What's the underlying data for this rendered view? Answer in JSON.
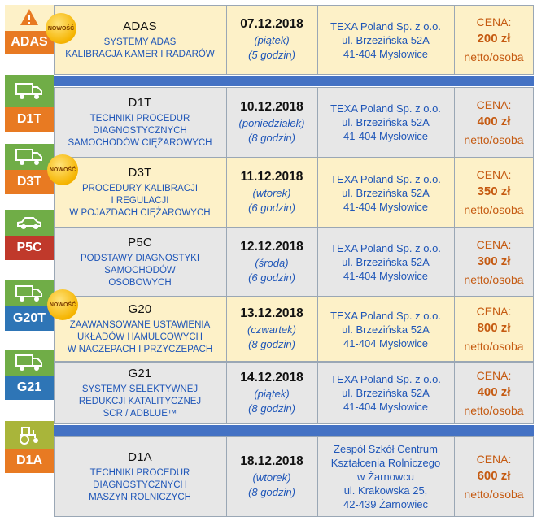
{
  "badge_new": "NOWOŚĆ",
  "price_label": "CENA:",
  "price_unit": "netto/osoba",
  "courses": [
    {
      "code": "ADAS",
      "name": "ADAS",
      "icon": "warning-car-icon",
      "desc": [
        "SYSTEMY ADAS",
        "KALIBRACJA KAMER I RADARÓW"
      ],
      "date": "07.12.2018",
      "day": "(piątek)",
      "duration": "(5 godzin)",
      "address": [
        "TEXA Poland Sp. z o.o.",
        "ul. Brzezińska 52A",
        "41-404 Mysłowice"
      ],
      "price": "200 zł"
    },
    {
      "code": "D1T",
      "name": "D1T",
      "icon": "truck-icon",
      "desc": [
        "TECHNIKI PROCEDUR",
        "DIAGNOSTYCZNYCH",
        "SAMOCHODÓW CIĘŻAROWYCH"
      ],
      "date": "10.12.2018",
      "day": "(poniedziałek)",
      "duration": "(8 godzin)",
      "address": [
        "TEXA Poland Sp. z o.o.",
        "ul. Brzezińska 52A",
        "41-404 Mysłowice"
      ],
      "price": "400 zł"
    },
    {
      "code": "D3T",
      "name": "D3T",
      "icon": "truck-icon",
      "desc": [
        "PROCEDURY KALIBRACJI",
        "I REGULACJI",
        "W POJAZDACH CIĘŻAROWYCH"
      ],
      "date": "11.12.2018",
      "day": "(wtorek)",
      "duration": "(6 godzin)",
      "address": [
        "TEXA Poland Sp. z o.o.",
        "ul. Brzezińska 52A",
        "41-404 Mysłowice"
      ],
      "price": "350 zł"
    },
    {
      "code": "P5C",
      "name": "P5C",
      "icon": "car-icon",
      "desc": [
        "PODSTAWY DIAGNOSTYKI",
        "SAMOCHODÓW",
        "OSOBOWYCH"
      ],
      "date": "12.12.2018",
      "day": "(środa)",
      "duration": "(6 godzin)",
      "address": [
        "TEXA Poland Sp. z o.o.",
        "ul. Brzezińska 52A",
        "41-404 Mysłowice"
      ],
      "price": "300 zł"
    },
    {
      "code": "G20T",
      "name": "G20",
      "icon": "truck-icon",
      "desc": [
        "ZAAWANSOWANE USTAWIENIA",
        "UKŁADÓW HAMULCOWYCH",
        "W NACZEPACH I PRZYCZEPACH"
      ],
      "date": "13.12.2018",
      "day": "(czwartek)",
      "duration": "(8 godzin)",
      "address": [
        "TEXA Poland Sp. z o.o.",
        "ul. Brzezińska 52A",
        "41-404 Mysłowice"
      ],
      "price": "800 zł"
    },
    {
      "code": "G21",
      "name": "G21",
      "icon": "truck-icon",
      "desc": [
        "SYSTEMY SELEKTYWNEJ",
        "REDUKCJI KATALITYCZNEJ",
        "SCR / ADBLUE™"
      ],
      "date": "14.12.2018",
      "day": "(piątek)",
      "duration": "(8 godzin)",
      "address": [
        "TEXA Poland Sp. z o.o.",
        "ul. Brzezińska 52A",
        "41-404 Mysłowice"
      ],
      "price": "400 zł"
    },
    {
      "code": "D1A",
      "name": "D1A",
      "icon": "tractor-icon",
      "desc": [
        "TECHNIKI PROCEDUR",
        "DIAGNOSTYCZNYCH",
        "MASZYN ROLNICZYCH"
      ],
      "date": "18.12.2018",
      "day": "(wtorek)",
      "duration": "(8 godzin)",
      "address": [
        "Zespół Szkół Centrum",
        "Kształcenia Rolniczego",
        "w Żarnowcu",
        "ul. Krakowska 25,",
        "42-439 Żarnowiec"
      ],
      "price": "600 zł"
    }
  ],
  "colors": {
    "yellow_row": "#fdf1c8",
    "gray_row": "#e7e7e7",
    "separator_bar": "#4472c4",
    "desc_text": "#1f56b8",
    "price_text": "#c55a11",
    "badge_adas_bottom": "#e87a22",
    "badge_adas_top": "#f4a04f",
    "badge_truck_top": "#70ad47",
    "badge_truck_bottom": "#e87a22",
    "badge_p5c_bottom": "#c0392b",
    "badge_g_bottom": "#2e75b6",
    "badge_d1a_top": "#a9b53a",
    "badge_d1a_bottom": "#e87a22"
  }
}
